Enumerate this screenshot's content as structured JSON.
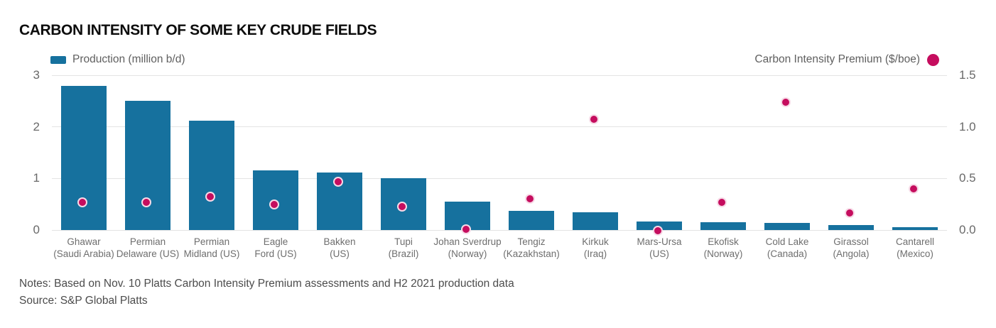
{
  "title": "CARBON INTENSITY OF SOME KEY CRUDE FIELDS",
  "legend": {
    "production_label": "Production (million b/d)",
    "premium_label": "Carbon Intensity Premium ($/boe)"
  },
  "notes": "Notes: Based on Nov. 10 Platts Carbon Intensity Premium assessments and H2 2021 production data",
  "source": "Source: S&P Global Platts",
  "colors": {
    "bar": "#16719e",
    "dot": "#c50d5e",
    "grid": "#e4e4e4",
    "axis_text": "#696969",
    "note_text": "#4c4c4c"
  },
  "chart_data": {
    "type": "bar",
    "title": "CARBON INTENSITY OF SOME KEY CRUDE FIELDS",
    "categories": [
      "Ghawar (Saudi Arabia)",
      "Permian Delaware (US)",
      "Permian Midland (US)",
      "Eagle Ford (US)",
      "Bakken (US)",
      "Tupi (Brazil)",
      "Johan Sverdrup (Norway)",
      "Tengiz (Kazakhstan)",
      "Kirkuk (Iraq)",
      "Mars-Ursa (US)",
      "Ekofisk (Norway)",
      "Cold Lake (Canada)",
      "Girassol (Angola)",
      "Cantarell (Mexico)"
    ],
    "category_labels": [
      [
        "Ghawar",
        "(Saudi Arabia)"
      ],
      [
        "Permian",
        "Delaware (US)"
      ],
      [
        "Permian",
        "Midland (US)"
      ],
      [
        "Eagle",
        "Ford (US)"
      ],
      [
        "Bakken",
        "(US)"
      ],
      [
        "Tupi",
        "(Brazil)"
      ],
      [
        "Johan Sverdrup",
        "(Norway)"
      ],
      [
        "Tengiz",
        "(Kazakhstan)"
      ],
      [
        "Kirkuk",
        "(Iraq)"
      ],
      [
        "Mars-Ursa",
        "(US)"
      ],
      [
        "Ekofisk",
        "(Norway)"
      ],
      [
        "Cold Lake",
        "(Canada)"
      ],
      [
        "Girassol",
        "(Angola)"
      ],
      [
        "Cantarell",
        "(Mexico)"
      ]
    ],
    "series": [
      {
        "name": "Production (million b/d)",
        "type": "bar",
        "axis": "left",
        "values": [
          2.8,
          2.5,
          2.12,
          1.16,
          1.12,
          1.0,
          0.55,
          0.37,
          0.34,
          0.16,
          0.15,
          0.14,
          0.1,
          0.05
        ]
      },
      {
        "name": "Carbon Intensity Premium ($/boe)",
        "type": "scatter",
        "axis": "right",
        "values": [
          0.28,
          0.28,
          0.34,
          0.26,
          0.48,
          0.24,
          0.02,
          0.32,
          1.09,
          0.01,
          0.28,
          1.25,
          0.18,
          0.41
        ]
      }
    ],
    "left_axis": {
      "range": [
        0,
        3
      ],
      "ticks": [
        "0",
        "1",
        "2",
        "3"
      ]
    },
    "right_axis": {
      "range": [
        0,
        1.5
      ],
      "ticks": [
        "0.0",
        "0.5",
        "1.0",
        "1.5"
      ]
    },
    "grid": true,
    "legend_position": "top"
  }
}
